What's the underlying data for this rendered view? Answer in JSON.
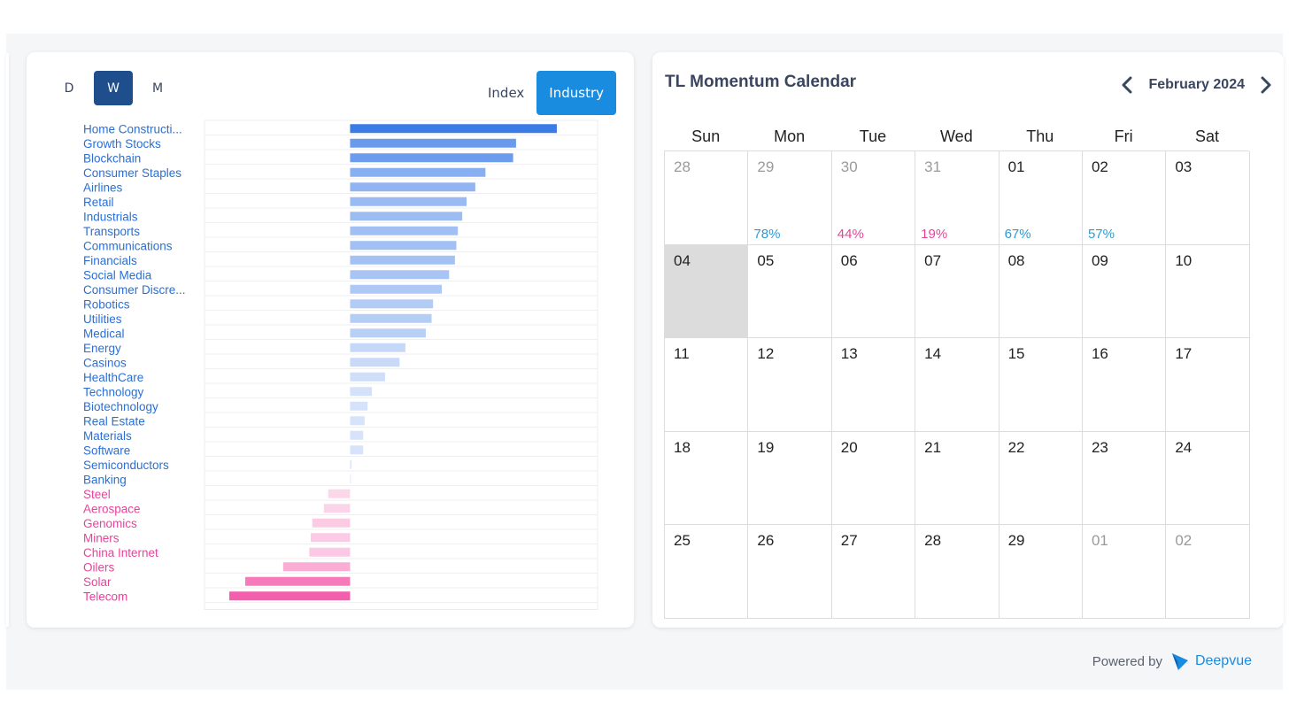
{
  "period_tabs": [
    {
      "label": "D",
      "active": false
    },
    {
      "label": "W",
      "active": true
    },
    {
      "label": "M",
      "active": false
    }
  ],
  "mode_tabs": [
    {
      "label": "Index",
      "active": false
    },
    {
      "label": "Industry",
      "active": true
    }
  ],
  "colors": {
    "positive_label": "#2a6fd6",
    "negative_label": "#e8439b",
    "positive_strong": "#3b7be6",
    "negative_strong": "#f45fad",
    "positive_pct": "#2d9bd6",
    "negative_pct": "#e8439b"
  },
  "chart_data": {
    "type": "bar",
    "orientation": "horizontal",
    "categories": [
      "Home Constructi...",
      "Growth Stocks",
      "Blockchain",
      "Consumer Staples",
      "Airlines",
      "Retail",
      "Industrials",
      "Transports",
      "Communications",
      "Financials",
      "Social Media",
      "Consumer Discre...",
      "Robotics",
      "Utilities",
      "Medical",
      "Energy",
      "Casinos",
      "HealthCare",
      "Technology",
      "Biotechnology",
      "Real Estate",
      "Materials",
      "Software",
      "Semiconductors",
      "Banking",
      "Steel",
      "Aerospace",
      "Genomics",
      "Miners",
      "China Internet",
      "Oilers",
      "Solar",
      "Telecom"
    ],
    "values": [
      14.2,
      11.4,
      11.2,
      9.3,
      8.6,
      8.0,
      7.7,
      7.4,
      7.3,
      7.2,
      6.8,
      6.3,
      5.7,
      5.6,
      5.2,
      3.8,
      3.4,
      2.4,
      1.5,
      1.2,
      1.0,
      0.9,
      0.9,
      0.1,
      0.05,
      -1.5,
      -1.8,
      -2.6,
      -2.7,
      -2.8,
      -4.6,
      -7.2,
      -8.3
    ],
    "xlim": [
      -10,
      17
    ],
    "grid": true
  },
  "calendar": {
    "title": "TL Momentum Calendar",
    "month": "February 2024",
    "weekdays": [
      "Sun",
      "Mon",
      "Tue",
      "Wed",
      "Thu",
      "Fri",
      "Sat"
    ],
    "days": [
      {
        "n": "28",
        "muted": true,
        "pct": "",
        "sign": ""
      },
      {
        "n": "29",
        "muted": true,
        "pct": "78%",
        "sign": "pos"
      },
      {
        "n": "30",
        "muted": true,
        "pct": "44%",
        "sign": "neg"
      },
      {
        "n": "31",
        "muted": true,
        "pct": "19%",
        "sign": "neg"
      },
      {
        "n": "01",
        "muted": false,
        "pct": "67%",
        "sign": "pos"
      },
      {
        "n": "02",
        "muted": false,
        "pct": "57%",
        "sign": "pos"
      },
      {
        "n": "03",
        "muted": false,
        "pct": "",
        "sign": ""
      },
      {
        "n": "04",
        "muted": false,
        "pct": "",
        "sign": "",
        "today": true
      },
      {
        "n": "05",
        "muted": false,
        "pct": "",
        "sign": ""
      },
      {
        "n": "06",
        "muted": false,
        "pct": "",
        "sign": ""
      },
      {
        "n": "07",
        "muted": false,
        "pct": "",
        "sign": ""
      },
      {
        "n": "08",
        "muted": false,
        "pct": "",
        "sign": ""
      },
      {
        "n": "09",
        "muted": false,
        "pct": "",
        "sign": ""
      },
      {
        "n": "10",
        "muted": false,
        "pct": "",
        "sign": ""
      },
      {
        "n": "11",
        "muted": false,
        "pct": "",
        "sign": ""
      },
      {
        "n": "12",
        "muted": false,
        "pct": "",
        "sign": ""
      },
      {
        "n": "13",
        "muted": false,
        "pct": "",
        "sign": ""
      },
      {
        "n": "14",
        "muted": false,
        "pct": "",
        "sign": ""
      },
      {
        "n": "15",
        "muted": false,
        "pct": "",
        "sign": ""
      },
      {
        "n": "16",
        "muted": false,
        "pct": "",
        "sign": ""
      },
      {
        "n": "17",
        "muted": false,
        "pct": "",
        "sign": ""
      },
      {
        "n": "18",
        "muted": false,
        "pct": "",
        "sign": ""
      },
      {
        "n": "19",
        "muted": false,
        "pct": "",
        "sign": ""
      },
      {
        "n": "20",
        "muted": false,
        "pct": "",
        "sign": ""
      },
      {
        "n": "21",
        "muted": false,
        "pct": "",
        "sign": ""
      },
      {
        "n": "22",
        "muted": false,
        "pct": "",
        "sign": ""
      },
      {
        "n": "23",
        "muted": false,
        "pct": "",
        "sign": ""
      },
      {
        "n": "24",
        "muted": false,
        "pct": "",
        "sign": ""
      },
      {
        "n": "25",
        "muted": false,
        "pct": "",
        "sign": ""
      },
      {
        "n": "26",
        "muted": false,
        "pct": "",
        "sign": ""
      },
      {
        "n": "27",
        "muted": false,
        "pct": "",
        "sign": ""
      },
      {
        "n": "28",
        "muted": false,
        "pct": "",
        "sign": ""
      },
      {
        "n": "29",
        "muted": false,
        "pct": "",
        "sign": ""
      },
      {
        "n": "01",
        "muted": true,
        "pct": "",
        "sign": ""
      },
      {
        "n": "02",
        "muted": true,
        "pct": "",
        "sign": ""
      }
    ]
  },
  "footer": {
    "powered_by": "Powered by",
    "brand": "Deepvue",
    "brand_icon": "deepvue-logo-icon"
  }
}
